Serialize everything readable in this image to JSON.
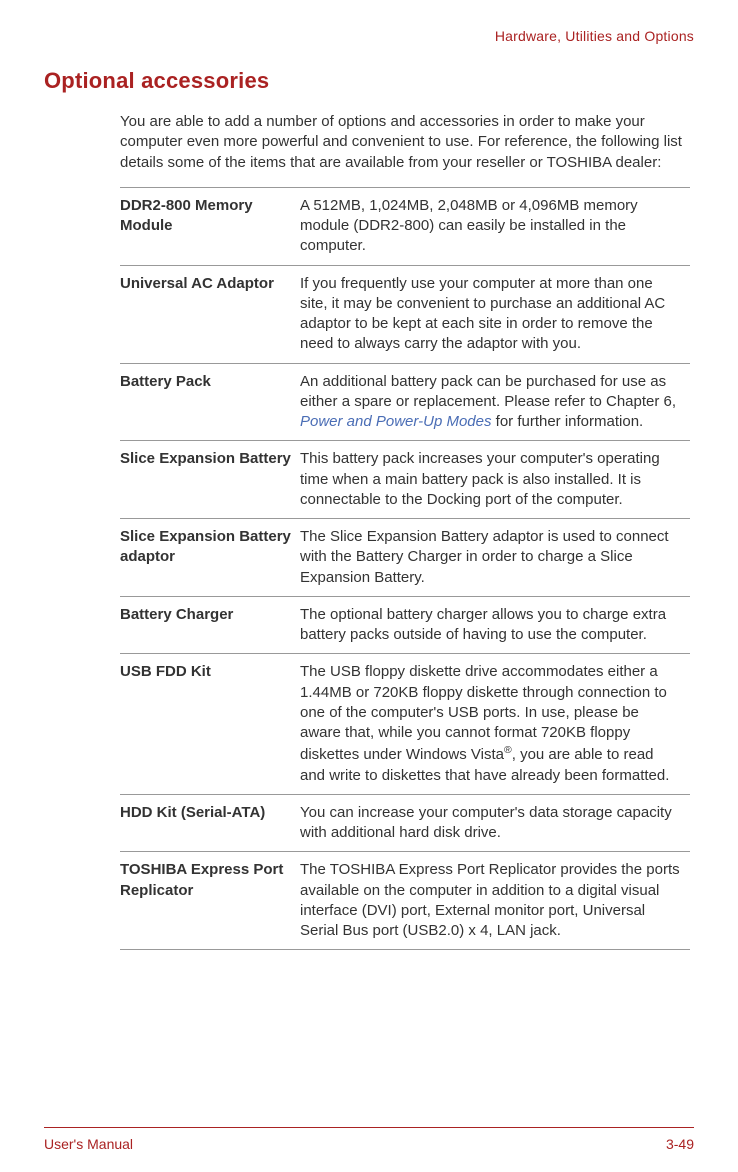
{
  "header": {
    "section_title": "Hardware, Utilities and Options"
  },
  "heading": "Optional accessories",
  "intro": "You are able to add a number of options and accessories in order to make your computer even more powerful and convenient to use. For reference, the following list details some of the items that are available from your reseller or TOSHIBA dealer:",
  "accessories": [
    {
      "name": "DDR2-800 Memory Module",
      "desc": "A 512MB, 1,024MB, 2,048MB or 4,096MB memory module (DDR2-800) can easily be installed in the computer."
    },
    {
      "name": "Universal AC Adaptor",
      "desc": "If you frequently use your computer at more than one site, it may be convenient to purchase an additional AC adaptor to be kept at each site in order to remove the need to always carry the adaptor with you."
    },
    {
      "name": "Battery Pack",
      "desc_prefix": "An additional battery pack can be purchased for use as either a spare or replacement. Please refer to Chapter 6, ",
      "desc_link": "Power and Power-Up Modes",
      "desc_suffix": " for further information."
    },
    {
      "name": "Slice Expansion Battery",
      "desc": "This battery pack increases your computer's operating time when a main battery pack is also installed. It is connectable to the Docking port of the computer."
    },
    {
      "name": "Slice Expansion Battery adaptor",
      "desc": "The Slice Expansion Battery adaptor is used to connect with the Battery Charger in order to charge a Slice Expansion Battery."
    },
    {
      "name": "Battery Charger",
      "desc": "The optional battery charger allows you to charge extra battery packs outside of having to use the computer."
    },
    {
      "name": "USB FDD Kit",
      "desc_html": "The USB floppy diskette drive accommodates either a 1.44MB or 720KB floppy diskette through connection to one of the computer's USB ports. In use, please be aware that, while you cannot format 720KB floppy diskettes under Windows Vista<sup>®</sup>, you are able to read and write to diskettes that have already been formatted."
    },
    {
      "name": "HDD Kit (Serial-ATA)",
      "desc": "You can increase your computer's data storage capacity with additional hard disk drive."
    },
    {
      "name": "TOSHIBA Express Port Replicator",
      "desc": "The TOSHIBA Express Port Replicator provides the ports available on the computer in addition to a digital visual interface (DVI) port, External monitor port, Universal Serial Bus port (USB2.0) x 4, LAN jack."
    }
  ],
  "footer": {
    "left": "User's Manual",
    "right": "3-49"
  },
  "colors": {
    "accent": "#aa2222",
    "body_text": "#333333",
    "link": "#4a6db5",
    "rule": "#999999",
    "background": "#ffffff"
  }
}
